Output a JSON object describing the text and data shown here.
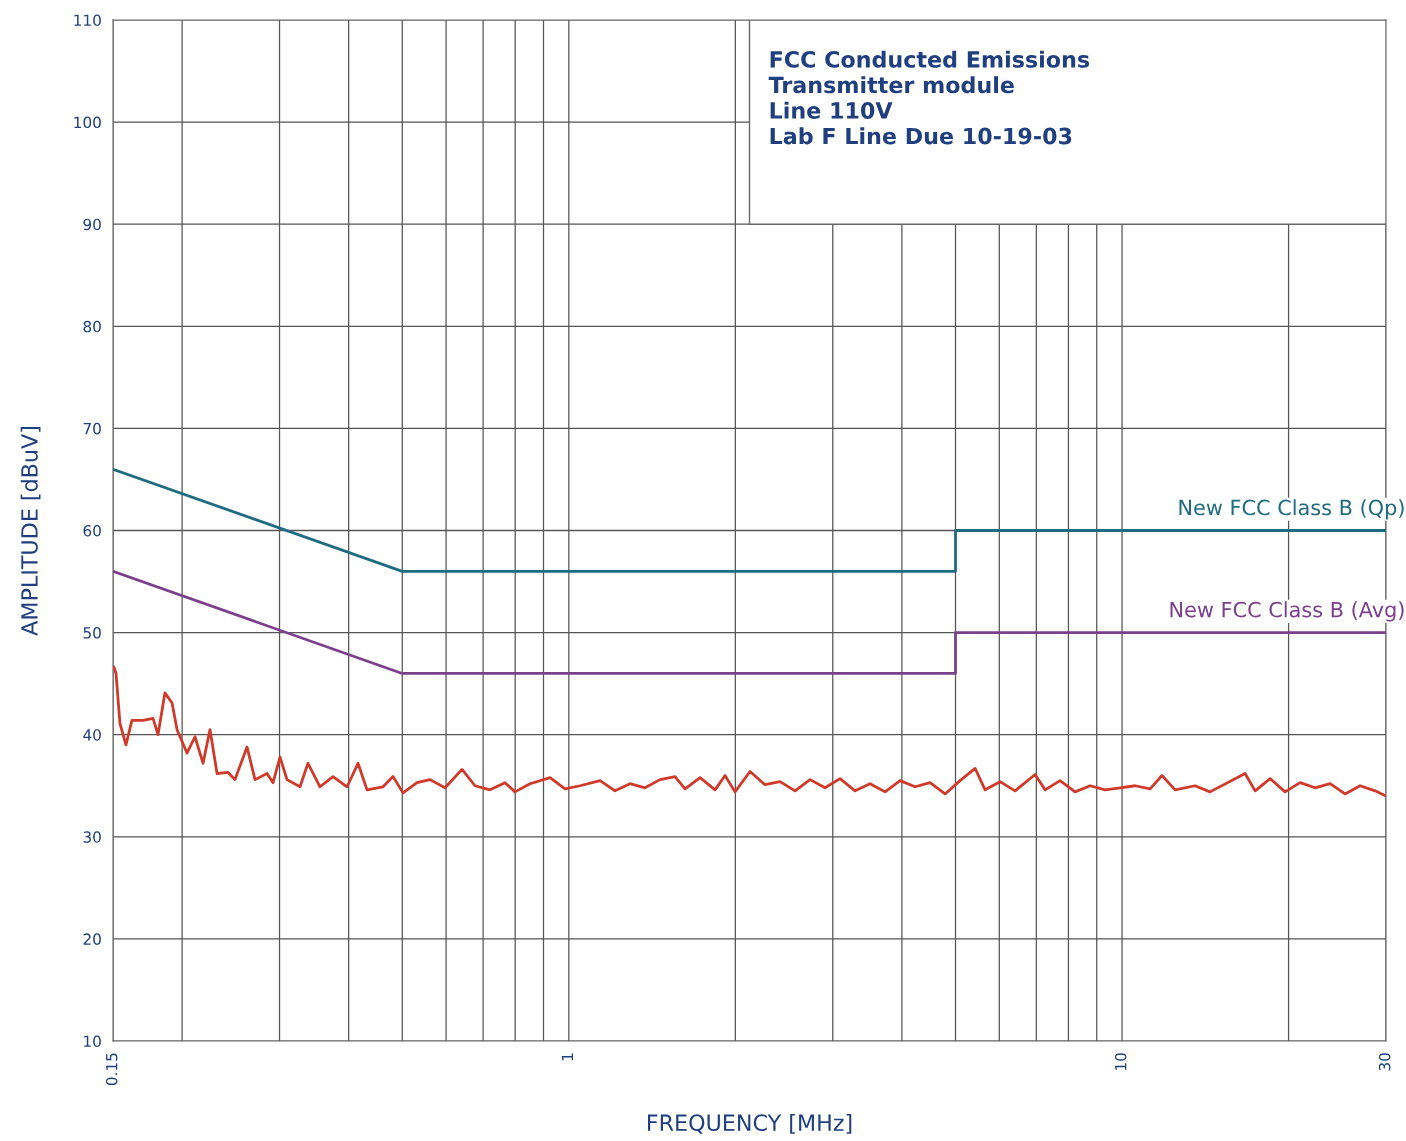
{
  "chart_data": {
    "type": "line",
    "xlabel": "FREQUENCY [MHz]",
    "ylabel": "AMPLITUDE [dBuV]",
    "log": "x",
    "grid": true,
    "legend": false,
    "line_style": "solid",
    "marker": "none",
    "xlim": [
      0.15,
      30
    ],
    "ylim": [
      10,
      110
    ],
    "xticks": [
      0.15,
      {
        "value": 0.2,
        "label": null
      },
      {
        "value": 0.3,
        "label": null
      },
      {
        "value": 0.4,
        "label": null
      },
      {
        "value": 0.5,
        "label": null
      },
      {
        "value": 0.6,
        "label": null
      },
      {
        "value": 0.7,
        "label": null
      },
      {
        "value": 0.8,
        "label": null
      },
      {
        "value": 0.9,
        "label": null
      },
      1,
      {
        "value": 2,
        "label": null
      },
      {
        "value": 3,
        "label": null
      },
      {
        "value": 4,
        "label": null
      },
      {
        "value": 5,
        "label": null
      },
      {
        "value": 6,
        "label": null
      },
      {
        "value": 7,
        "label": null
      },
      {
        "value": 8,
        "label": null
      },
      {
        "value": 9,
        "label": null
      },
      10,
      {
        "value": 20,
        "label": null
      },
      30
    ],
    "yticks": [
      10,
      20,
      30,
      40,
      50,
      60,
      70,
      80,
      90,
      100,
      110
    ],
    "annotations": [
      "FCC Conducted Emissions",
      "Transmitter module",
      "Line 110V",
      "Lab F Line Due 10-19-03"
    ],
    "series": [
      {
        "name": "New FCC Class B (Qp)",
        "color": "#1f6b80",
        "x": [
          0.15,
          0.5,
          5,
          5,
          30
        ],
        "values": [
          66,
          56,
          56,
          60,
          60
        ]
      },
      {
        "name": "New FCC Class B (Avg)",
        "color": "#7b3f8c",
        "x": [
          0.15,
          0.5,
          5,
          5,
          30
        ],
        "values": [
          56,
          46,
          46,
          50,
          50
        ]
      },
      {
        "color": "#d03a2a",
        "x": [
          0.1506,
          0.1519,
          0.1544,
          0.1583,
          0.1623,
          0.17,
          0.1772,
          0.1809,
          0.1862,
          0.1918,
          0.1958,
          0.2041,
          0.211,
          0.2182,
          0.2246,
          0.2313,
          0.2421,
          0.2492,
          0.262,
          0.2709,
          0.2848,
          0.292,
          0.3006,
          0.3095,
          0.3267,
          0.3377,
          0.355,
          0.3748,
          0.3973,
          0.4159,
          0.4318,
          0.4615,
          0.4811,
          0.5016,
          0.5316,
          0.5612,
          0.5974,
          0.6412,
          0.6768,
          0.7204,
          0.7668,
          0.7994,
          0.8509,
          0.9248,
          0.9843,
          1.048,
          1.139,
          1.212,
          1.29,
          1.373,
          1.462,
          1.556,
          1.622,
          1.727,
          1.838,
          1.916,
          1.997,
          2.126,
          2.263,
          2.409,
          2.564,
          2.729,
          2.905,
          3.092,
          3.292,
          3.504,
          3.73,
          3.97,
          4.226,
          4.498,
          4.788,
          5.096,
          5.425,
          5.655,
          6.019,
          6.407,
          6.963,
          7.259,
          7.727,
          8.225,
          8.754,
          9.318,
          9.919,
          10.56,
          11.24,
          11.81,
          12.47,
          13.55,
          14.42,
          16.69,
          17.4,
          18.52,
          19.71,
          20.98,
          22.33,
          23.77,
          25.3,
          26.93,
          28.67,
          30
        ],
        "values": [
          46.6,
          46.0,
          41.1,
          39.0,
          41.4,
          41.4,
          41.6,
          40.0,
          44.1,
          43.1,
          40.5,
          38.2,
          39.8,
          37.2,
          40.5,
          36.2,
          36.3,
          35.6,
          38.8,
          35.6,
          36.2,
          35.3,
          37.8,
          35.6,
          34.9,
          37.2,
          34.9,
          35.9,
          34.9,
          37.2,
          34.6,
          34.9,
          35.9,
          34.3,
          35.3,
          35.6,
          34.8,
          36.6,
          35.0,
          34.6,
          35.3,
          34.4,
          35.2,
          35.8,
          34.7,
          35.0,
          35.5,
          34.5,
          35.2,
          34.8,
          35.6,
          35.9,
          34.7,
          35.8,
          34.6,
          36.0,
          34.4,
          36.4,
          35.1,
          35.4,
          34.5,
          35.6,
          34.8,
          35.7,
          34.5,
          35.2,
          34.4,
          35.5,
          34.9,
          35.3,
          34.2,
          35.5,
          36.7,
          34.6,
          35.4,
          34.5,
          36.1,
          34.6,
          35.5,
          34.4,
          35.0,
          34.6,
          34.8,
          35.0,
          34.7,
          36.0,
          34.6,
          35.0,
          34.4,
          36.2,
          34.5,
          35.7,
          34.4,
          35.3,
          34.8,
          35.2,
          34.2,
          35.0,
          34.5,
          34.0
        ]
      }
    ]
  }
}
